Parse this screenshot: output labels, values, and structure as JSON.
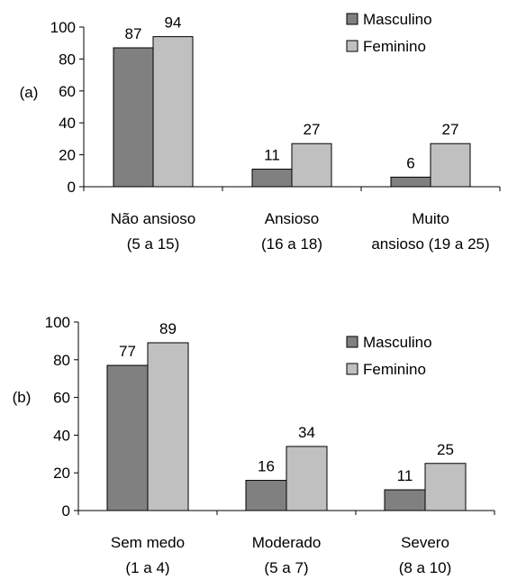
{
  "chart_data": [
    {
      "type": "bar",
      "panel_label": "(a)",
      "categories": [
        {
          "line1": "Não ansioso",
          "line2": "(5 a 15)"
        },
        {
          "line1": "Ansioso",
          "line2": "(16 a 18)"
        },
        {
          "line1": "Muito",
          "line2": "ansioso   (19 a 25)"
        }
      ],
      "series": [
        {
          "name": "Masculino",
          "color": "#808080",
          "values": [
            87,
            11,
            6
          ]
        },
        {
          "name": "Feminino",
          "color": "#c0c0c0",
          "values": [
            94,
            27,
            27
          ]
        }
      ],
      "ylim": [
        0,
        100
      ],
      "yticks": [
        0,
        20,
        40,
        60,
        80,
        100
      ],
      "grid": false,
      "legend_position": "top-right"
    },
    {
      "type": "bar",
      "panel_label": "(b)",
      "categories": [
        {
          "line1": "Sem medo",
          "line2": "(1 a 4)"
        },
        {
          "line1": "Moderado",
          "line2": "(5 a 7)"
        },
        {
          "line1": "Severo",
          "line2": "(8 a 10)"
        }
      ],
      "series": [
        {
          "name": "Masculino",
          "color": "#808080",
          "values": [
            77,
            16,
            11
          ]
        },
        {
          "name": "Feminino",
          "color": "#c0c0c0",
          "values": [
            89,
            34,
            25
          ]
        }
      ],
      "ylim": [
        0,
        100
      ],
      "yticks": [
        0,
        20,
        40,
        60,
        80,
        100
      ],
      "grid": false,
      "legend_position": "top-right"
    }
  ]
}
